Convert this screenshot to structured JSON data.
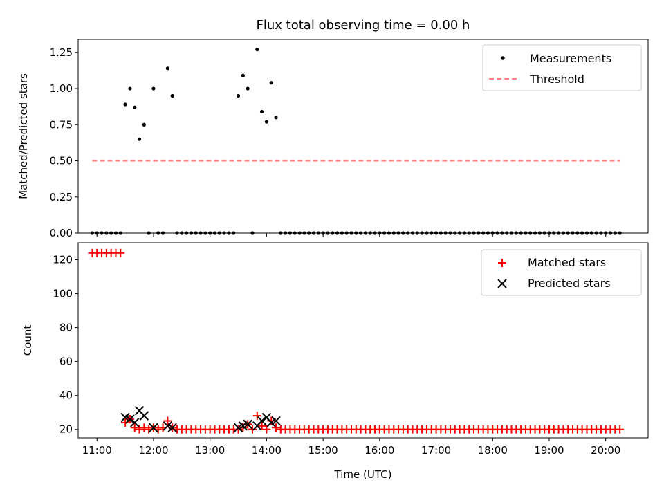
{
  "chart_data": [
    {
      "type": "scatter",
      "title": "Flux total observing time = 0.00 h",
      "xlabel": "",
      "ylabel": "Matched/Predicted stars",
      "xlim": [
        "10:40",
        "20:45"
      ],
      "ylim": [
        0,
        1.34
      ],
      "yticks": [
        0,
        0.25,
        0.5,
        0.75,
        1.0,
        1.25
      ],
      "ytick_labels": [
        "0.00",
        "0.25",
        "0.50",
        "0.75",
        "1.00",
        "1.25"
      ],
      "xticks": [
        "11:00",
        "12:00",
        "13:00",
        "14:00",
        "15:00",
        "16:00",
        "17:00",
        "18:00",
        "19:00",
        "20:00"
      ],
      "xtick_labels_shown": false,
      "legend_position": "top-right",
      "grid": false,
      "series": [
        {
          "name": "Measurements",
          "kind": "scatter",
          "marker": "dot",
          "color": "#000000",
          "points": [
            [
              "10:55",
              0
            ],
            [
              "11:00",
              0
            ],
            [
              "11:05",
              0
            ],
            [
              "11:10",
              0
            ],
            [
              "11:15",
              0
            ],
            [
              "11:20",
              0
            ],
            [
              "11:25",
              0
            ],
            [
              "11:30",
              0.89
            ],
            [
              "11:35",
              1.0
            ],
            [
              "11:40",
              0.87
            ],
            [
              "11:45",
              0.65
            ],
            [
              "11:50",
              0.75
            ],
            [
              "11:55",
              0
            ],
            [
              "12:00",
              1.0
            ],
            [
              "12:05",
              0
            ],
            [
              "12:10",
              0
            ],
            [
              "12:15",
              1.14
            ],
            [
              "12:20",
              0.95
            ],
            [
              "12:25",
              0
            ],
            [
              "12:30",
              0
            ],
            [
              "12:35",
              0
            ],
            [
              "12:40",
              0
            ],
            [
              "12:45",
              0
            ],
            [
              "12:50",
              0
            ],
            [
              "12:55",
              0
            ],
            [
              "13:00",
              0
            ],
            [
              "13:05",
              0
            ],
            [
              "13:10",
              0
            ],
            [
              "13:15",
              0
            ],
            [
              "13:20",
              0
            ],
            [
              "13:25",
              0
            ],
            [
              "13:30",
              0.95
            ],
            [
              "13:35",
              1.09
            ],
            [
              "13:40",
              1.0
            ],
            [
              "13:45",
              0
            ],
            [
              "13:50",
              1.27
            ],
            [
              "13:55",
              0.84
            ],
            [
              "14:00",
              0.77
            ],
            [
              "14:05",
              1.04
            ],
            [
              "14:10",
              0.8
            ],
            [
              "14:15",
              0
            ],
            [
              "14:20",
              0
            ],
            [
              "14:25",
              0
            ],
            [
              "14:30",
              0
            ],
            [
              "14:35",
              0
            ],
            [
              "14:40",
              0
            ],
            [
              "14:45",
              0
            ],
            [
              "14:50",
              0
            ],
            [
              "14:55",
              0
            ],
            [
              "15:00",
              0
            ],
            [
              "15:05",
              0
            ],
            [
              "15:10",
              0
            ],
            [
              "15:15",
              0
            ],
            [
              "15:20",
              0
            ],
            [
              "15:25",
              0
            ],
            [
              "15:30",
              0
            ],
            [
              "15:35",
              0
            ],
            [
              "15:40",
              0
            ],
            [
              "15:45",
              0
            ],
            [
              "15:50",
              0
            ],
            [
              "15:55",
              0
            ],
            [
              "16:00",
              0
            ],
            [
              "16:05",
              0
            ],
            [
              "16:10",
              0
            ],
            [
              "16:15",
              0
            ],
            [
              "16:20",
              0
            ],
            [
              "16:25",
              0
            ],
            [
              "16:30",
              0
            ],
            [
              "16:35",
              0
            ],
            [
              "16:40",
              0
            ],
            [
              "16:45",
              0
            ],
            [
              "16:50",
              0
            ],
            [
              "16:55",
              0
            ],
            [
              "17:00",
              0
            ],
            [
              "17:05",
              0
            ],
            [
              "17:10",
              0
            ],
            [
              "17:15",
              0
            ],
            [
              "17:20",
              0
            ],
            [
              "17:25",
              0
            ],
            [
              "17:30",
              0
            ],
            [
              "17:35",
              0
            ],
            [
              "17:40",
              0
            ],
            [
              "17:45",
              0
            ],
            [
              "17:50",
              0
            ],
            [
              "17:55",
              0
            ],
            [
              "18:00",
              0
            ],
            [
              "18:05",
              0
            ],
            [
              "18:10",
              0
            ],
            [
              "18:15",
              0
            ],
            [
              "18:20",
              0
            ],
            [
              "18:25",
              0
            ],
            [
              "18:30",
              0
            ],
            [
              "18:35",
              0
            ],
            [
              "18:40",
              0
            ],
            [
              "18:45",
              0
            ],
            [
              "18:50",
              0
            ],
            [
              "18:55",
              0
            ],
            [
              "19:00",
              0
            ],
            [
              "19:05",
              0
            ],
            [
              "19:10",
              0
            ],
            [
              "19:15",
              0
            ],
            [
              "19:20",
              0
            ],
            [
              "19:25",
              0
            ],
            [
              "19:30",
              0
            ],
            [
              "19:35",
              0
            ],
            [
              "19:40",
              0
            ],
            [
              "19:45",
              0
            ],
            [
              "19:50",
              0
            ],
            [
              "19:55",
              0
            ],
            [
              "20:00",
              0
            ],
            [
              "20:05",
              0
            ],
            [
              "20:10",
              0
            ],
            [
              "20:15",
              0
            ]
          ]
        },
        {
          "name": "Threshold",
          "kind": "line",
          "style": "dashed",
          "color": "#ff7f7f",
          "points": [
            [
              "10:55",
              0.5
            ],
            [
              "20:15",
              0.5
            ]
          ]
        }
      ]
    },
    {
      "type": "scatter",
      "title": "",
      "xlabel": "Time (UTC)",
      "ylabel": "Count",
      "xlim": [
        "10:40",
        "20:45"
      ],
      "ylim": [
        15,
        130
      ],
      "yticks": [
        20,
        40,
        60,
        80,
        100,
        120
      ],
      "ytick_labels": [
        "20",
        "40",
        "60",
        "80",
        "100",
        "120"
      ],
      "xticks": [
        "11:00",
        "12:00",
        "13:00",
        "14:00",
        "15:00",
        "16:00",
        "17:00",
        "18:00",
        "19:00",
        "20:00"
      ],
      "xtick_labels": [
        "11:00",
        "12:00",
        "13:00",
        "14:00",
        "15:00",
        "16:00",
        "17:00",
        "18:00",
        "19:00",
        "20:00"
      ],
      "legend_position": "top-right",
      "grid": false,
      "series": [
        {
          "name": "Matched stars",
          "kind": "scatter",
          "marker": "plus",
          "color": "#ff0000",
          "points": [
            [
              "10:55",
              124
            ],
            [
              "11:00",
              124
            ],
            [
              "11:05",
              124
            ],
            [
              "11:10",
              124
            ],
            [
              "11:15",
              124
            ],
            [
              "11:20",
              124
            ],
            [
              "11:25",
              124
            ],
            [
              "11:30",
              24
            ],
            [
              "11:35",
              26
            ],
            [
              "11:40",
              21
            ],
            [
              "11:45",
              20
            ],
            [
              "11:50",
              21
            ],
            [
              "11:55",
              20
            ],
            [
              "12:00",
              21
            ],
            [
              "12:05",
              20
            ],
            [
              "12:10",
              21
            ],
            [
              "12:15",
              25
            ],
            [
              "12:20",
              21
            ],
            [
              "12:25",
              20
            ],
            [
              "12:30",
              20
            ],
            [
              "12:35",
              20
            ],
            [
              "12:40",
              20
            ],
            [
              "12:45",
              20
            ],
            [
              "12:50",
              20
            ],
            [
              "12:55",
              20
            ],
            [
              "13:00",
              20
            ],
            [
              "13:05",
              20
            ],
            [
              "13:10",
              20
            ],
            [
              "13:15",
              20
            ],
            [
              "13:20",
              20
            ],
            [
              "13:25",
              20
            ],
            [
              "13:30",
              20
            ],
            [
              "13:35",
              21
            ],
            [
              "13:40",
              23
            ],
            [
              "13:45",
              20
            ],
            [
              "13:50",
              28
            ],
            [
              "13:55",
              22
            ],
            [
              "14:00",
              20
            ],
            [
              "14:05",
              25
            ],
            [
              "14:10",
              21
            ],
            [
              "14:15",
              20
            ],
            [
              "14:20",
              20
            ],
            [
              "14:25",
              20
            ],
            [
              "14:30",
              20
            ],
            [
              "14:35",
              20
            ],
            [
              "14:40",
              20
            ],
            [
              "14:45",
              20
            ],
            [
              "14:50",
              20
            ],
            [
              "14:55",
              20
            ],
            [
              "15:00",
              20
            ],
            [
              "15:05",
              20
            ],
            [
              "15:10",
              20
            ],
            [
              "15:15",
              20
            ],
            [
              "15:20",
              20
            ],
            [
              "15:25",
              20
            ],
            [
              "15:30",
              20
            ],
            [
              "15:35",
              20
            ],
            [
              "15:40",
              20
            ],
            [
              "15:45",
              20
            ],
            [
              "15:50",
              20
            ],
            [
              "15:55",
              20
            ],
            [
              "16:00",
              20
            ],
            [
              "16:05",
              20
            ],
            [
              "16:10",
              20
            ],
            [
              "16:15",
              20
            ],
            [
              "16:20",
              20
            ],
            [
              "16:25",
              20
            ],
            [
              "16:30",
              20
            ],
            [
              "16:35",
              20
            ],
            [
              "16:40",
              20
            ],
            [
              "16:45",
              20
            ],
            [
              "16:50",
              20
            ],
            [
              "16:55",
              20
            ],
            [
              "17:00",
              20
            ],
            [
              "17:05",
              20
            ],
            [
              "17:10",
              20
            ],
            [
              "17:15",
              20
            ],
            [
              "17:20",
              20
            ],
            [
              "17:25",
              20
            ],
            [
              "17:30",
              20
            ],
            [
              "17:35",
              20
            ],
            [
              "17:40",
              20
            ],
            [
              "17:45",
              20
            ],
            [
              "17:50",
              20
            ],
            [
              "17:55",
              20
            ],
            [
              "18:00",
              20
            ],
            [
              "18:05",
              20
            ],
            [
              "18:10",
              20
            ],
            [
              "18:15",
              20
            ],
            [
              "18:20",
              20
            ],
            [
              "18:25",
              20
            ],
            [
              "18:30",
              20
            ],
            [
              "18:35",
              20
            ],
            [
              "18:40",
              20
            ],
            [
              "18:45",
              20
            ],
            [
              "18:50",
              20
            ],
            [
              "18:55",
              20
            ],
            [
              "19:00",
              20
            ],
            [
              "19:05",
              20
            ],
            [
              "19:10",
              20
            ],
            [
              "19:15",
              20
            ],
            [
              "19:20",
              20
            ],
            [
              "19:25",
              20
            ],
            [
              "19:30",
              20
            ],
            [
              "19:35",
              20
            ],
            [
              "19:40",
              20
            ],
            [
              "19:45",
              20
            ],
            [
              "19:50",
              20
            ],
            [
              "19:55",
              20
            ],
            [
              "20:00",
              20
            ],
            [
              "20:05",
              20
            ],
            [
              "20:10",
              20
            ],
            [
              "20:15",
              20
            ]
          ]
        },
        {
          "name": "Predicted stars",
          "kind": "scatter",
          "marker": "x",
          "color": "#000000",
          "points": [
            [
              "11:30",
              27
            ],
            [
              "11:35",
              26
            ],
            [
              "11:40",
              24
            ],
            [
              "11:45",
              31
            ],
            [
              "11:50",
              28
            ],
            [
              "12:00",
              21
            ],
            [
              "12:15",
              22
            ],
            [
              "12:20",
              21
            ],
            [
              "13:30",
              21
            ],
            [
              "13:35",
              22
            ],
            [
              "13:40",
              23
            ],
            [
              "13:50",
              22
            ],
            [
              "13:55",
              25
            ],
            [
              "14:00",
              27
            ],
            [
              "14:05",
              24
            ],
            [
              "14:10",
              25
            ]
          ]
        }
      ]
    }
  ]
}
